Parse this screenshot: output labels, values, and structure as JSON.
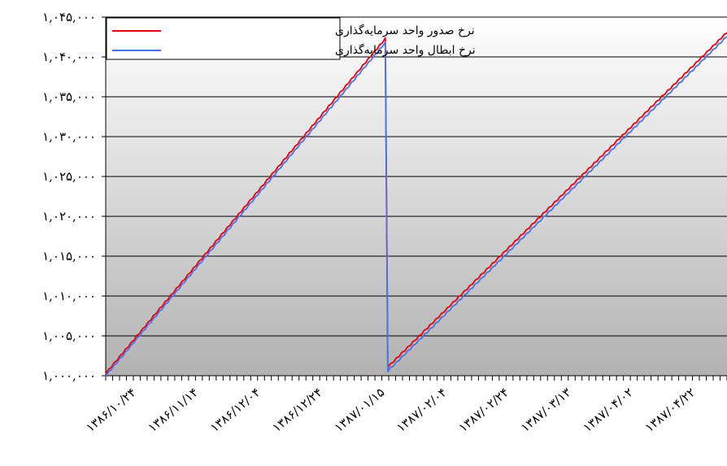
{
  "chart_data": {
    "type": "line",
    "x_tick_labels": [
      "۱۳۸۶/۱۰/۲۴",
      "۱۳۸۶/۱۱/۱۴",
      "۱۳۸۶/۱۲/۰۴",
      "۱۳۸۶/۱۲/۲۴",
      "۱۳۸۷/۰۱/۱۵",
      "۱۳۸۷/۰۲/۰۴",
      "۱۳۸۷/۰۲/۲۴",
      "۱۳۸۷/۰۳/۱۳",
      "۱۳۸۷/۰۴/۰۲",
      "۱۳۸۷/۰۴/۲۲"
    ],
    "y_tick_labels": [
      "۱,۰۰۰,۰۰۰",
      "۱,۰۰۵,۰۰۰",
      "۱,۰۱۰,۰۰۰",
      "۱,۰۱۵,۰۰۰",
      "۱,۰۲۰,۰۰۰",
      "۱,۰۲۵,۰۰۰",
      "۱,۰۳۰,۰۰۰",
      "۱,۰۳۵,۰۰۰",
      "۱,۰۴۰,۰۰۰",
      "۱,۰۴۵,۰۰۰"
    ],
    "y_ticks": [
      1000000,
      1005000,
      1010000,
      1015000,
      1020000,
      1025000,
      1030000,
      1035000,
      1040000,
      1045000
    ],
    "ylim": [
      1000000,
      1045000
    ],
    "x_range_ticks": [
      0,
      10
    ],
    "grid": "horizontal",
    "legend_position": "top-left",
    "series": [
      {
        "name": "نرخ صدور واحد سرمایه‌گذاری",
        "color": "#e8000b",
        "points": [
          [
            0,
            1000200
          ],
          [
            4.5,
            1042200
          ],
          [
            4.54,
            1001000
          ],
          [
            10,
            1043000
          ]
        ]
      },
      {
        "name": "نرخ ابطال واحد سرمایه‌گذاری",
        "color": "#4a72e8",
        "points": [
          [
            0,
            999900
          ],
          [
            4.5,
            1041700
          ],
          [
            4.54,
            1000500
          ],
          [
            10,
            1042500
          ]
        ]
      }
    ]
  }
}
